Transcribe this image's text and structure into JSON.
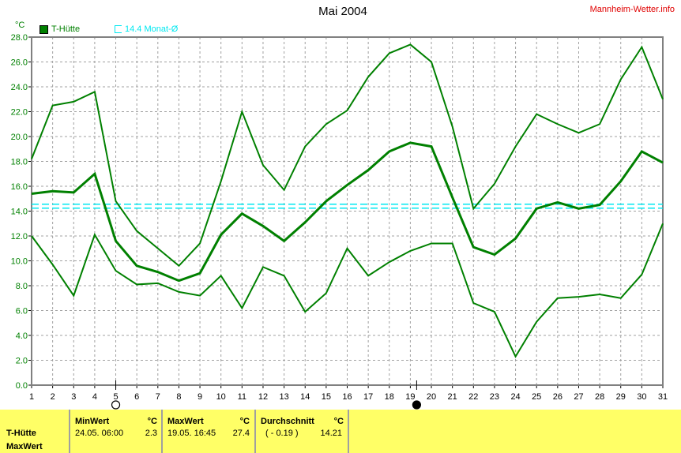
{
  "header": {
    "title": "Mai 2004",
    "brand": "Mannheim-Wetter.info"
  },
  "legend": {
    "series_label": "T-Hütte",
    "avg_label": "14.4 Monat-Ø",
    "unit": "°C"
  },
  "colors": {
    "series": "#008000",
    "avg_line": "#00e8f0",
    "brand": "#e00000",
    "table_bg": "#ffff66",
    "axis_labels": "#008000"
  },
  "moon_phases": [
    {
      "day": 5,
      "phase": "full-moon"
    },
    {
      "day": 19,
      "phase": "new-moon"
    }
  ],
  "chart_data": {
    "type": "line",
    "title": "Mai 2004",
    "ylabel": "°C",
    "ylim": [
      0,
      28
    ],
    "yticks": [
      "0.0",
      "2.0",
      "4.0",
      "6.0",
      "8.0",
      "10.0",
      "12.0",
      "14.0",
      "16.0",
      "18.0",
      "20.0",
      "22.0",
      "24.0",
      "26.0",
      "28.0"
    ],
    "x": [
      1,
      2,
      3,
      4,
      5,
      6,
      7,
      8,
      9,
      10,
      11,
      12,
      13,
      14,
      15,
      16,
      17,
      18,
      19,
      20,
      21,
      22,
      23,
      24,
      25,
      26,
      27,
      28,
      29,
      30,
      31
    ],
    "grid": true,
    "monthly_average": 14.4,
    "series": [
      {
        "role": "max",
        "values": [
          18.2,
          22.5,
          22.8,
          23.6,
          14.8,
          12.4,
          11.0,
          9.6,
          11.4,
          16.4,
          22.0,
          17.7,
          15.7,
          19.2,
          21.0,
          22.1,
          24.8,
          26.7,
          27.4,
          26.0,
          20.8,
          14.2,
          16.2,
          19.2,
          21.8,
          21.0,
          20.3,
          21.0,
          24.6,
          27.2,
          23.0
        ]
      },
      {
        "role": "mean",
        "values": [
          15.4,
          15.6,
          15.5,
          17.0,
          11.6,
          9.6,
          9.1,
          8.4,
          9.0,
          12.1,
          13.8,
          12.8,
          11.6,
          13.1,
          14.8,
          16.1,
          17.3,
          18.8,
          19.5,
          19.2,
          15.1,
          11.1,
          10.5,
          11.8,
          14.2,
          14.7,
          14.2,
          14.5,
          16.4,
          18.8,
          17.9
        ]
      },
      {
        "role": "min",
        "values": [
          12.0,
          9.7,
          7.2,
          12.1,
          9.2,
          8.1,
          8.2,
          7.5,
          7.2,
          8.8,
          6.2,
          9.5,
          8.8,
          5.9,
          7.4,
          11.0,
          8.8,
          9.9,
          10.8,
          11.4,
          11.4,
          6.6,
          5.9,
          2.3,
          5.1,
          7.0,
          7.1,
          7.3,
          7.0,
          8.9,
          13.0
        ]
      }
    ]
  },
  "table": {
    "row_labels": [
      "T-Hütte",
      "MaxWert"
    ],
    "min": {
      "head": "MinWert",
      "unit": "°C",
      "when": "24.05.  06:00",
      "value": "2.3"
    },
    "max": {
      "head": "MaxWert",
      "unit": "°C",
      "when": "19.05.  16:45",
      "value": "27.4"
    },
    "avg": {
      "head": "Durchschnitt",
      "unit": "°C",
      "delta": "( - 0.19 )",
      "value": "14.21"
    }
  }
}
